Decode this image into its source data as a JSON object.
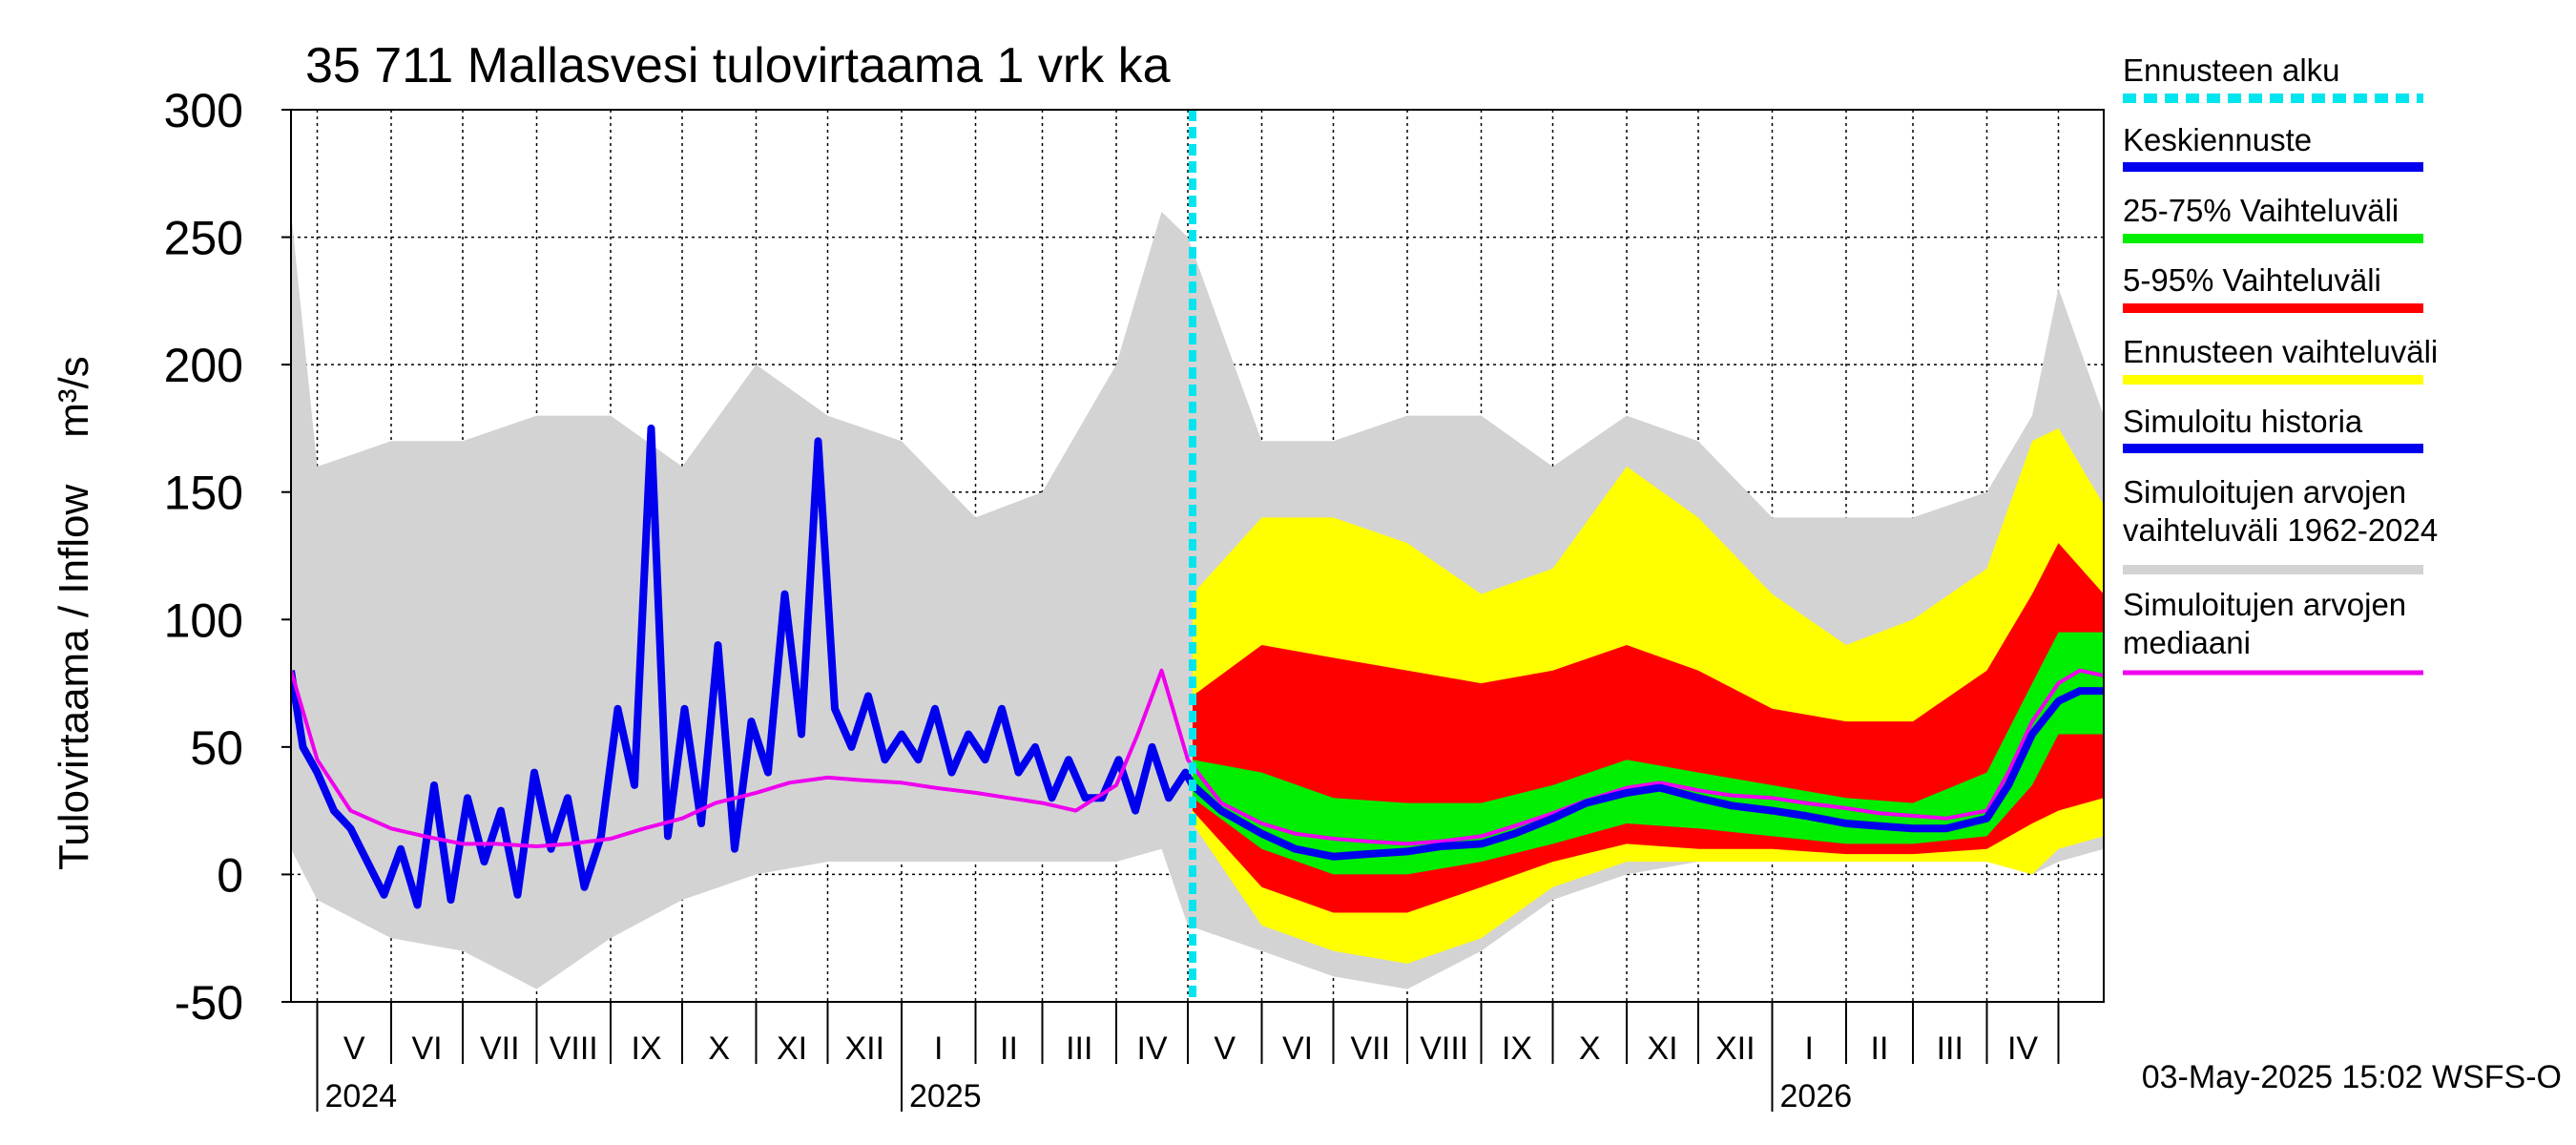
{
  "chart_data": {
    "type": "line",
    "title": "35 711 Mallasvesi tulovirtaama 1 vrk ka",
    "ylabel": "Tulovirtaama / Inflow    m³/s",
    "ylim": [
      -50,
      300
    ],
    "yticks": [
      -50,
      0,
      50,
      100,
      150,
      200,
      250,
      300
    ],
    "ytick_labels": [
      "-50",
      "0",
      "50",
      "100",
      "150",
      "200",
      "250",
      "300"
    ],
    "xlim": [
      "2024-04-20",
      "2026-05-20"
    ],
    "forecast_start": "2025-05-03",
    "months": [
      {
        "label": "V",
        "start": "2024-05-01"
      },
      {
        "label": "VI",
        "start": "2024-06-01"
      },
      {
        "label": "VII",
        "start": "2024-07-01"
      },
      {
        "label": "VIII",
        "start": "2024-08-01"
      },
      {
        "label": "IX",
        "start": "2024-09-01"
      },
      {
        "label": "X",
        "start": "2024-10-01"
      },
      {
        "label": "XI",
        "start": "2024-11-01"
      },
      {
        "label": "XII",
        "start": "2024-12-01"
      },
      {
        "label": "I",
        "start": "2025-01-01"
      },
      {
        "label": "II",
        "start": "2025-02-01"
      },
      {
        "label": "III",
        "start": "2025-03-01"
      },
      {
        "label": "IV",
        "start": "2025-04-01"
      },
      {
        "label": "V",
        "start": "2025-05-01"
      },
      {
        "label": "VI",
        "start": "2025-06-01"
      },
      {
        "label": "VII",
        "start": "2025-07-01"
      },
      {
        "label": "VIII",
        "start": "2025-08-01"
      },
      {
        "label": "IX",
        "start": "2025-09-01"
      },
      {
        "label": "X",
        "start": "2025-10-01"
      },
      {
        "label": "XI",
        "start": "2025-11-01"
      },
      {
        "label": "XII",
        "start": "2025-12-01"
      },
      {
        "label": "I",
        "start": "2026-01-01"
      },
      {
        "label": "II",
        "start": "2026-02-01"
      },
      {
        "label": "III",
        "start": "2026-03-01"
      },
      {
        "label": "IV",
        "start": "2026-04-01"
      },
      {
        "label": "",
        "start": "2026-05-01"
      }
    ],
    "years": [
      {
        "label": "2024",
        "date": "2024-05-01"
      },
      {
        "label": "2025",
        "date": "2025-01-01"
      },
      {
        "label": "2026",
        "date": "2026-01-01"
      }
    ],
    "legend": [
      {
        "label": "Ennusteen alku",
        "color": "#00e5ee",
        "style": "dashed"
      },
      {
        "label": "Keskiennuste",
        "color": "#0000ee",
        "style": "solid"
      },
      {
        "label": "25-75% Vaihteluväli",
        "color": "#00ee00",
        "style": "solid"
      },
      {
        "label": "5-95% Vaihteluväli",
        "color": "#ff0000",
        "style": "solid"
      },
      {
        "label": "Ennusteen vaihteluväli",
        "color": "#ffff00",
        "style": "solid"
      },
      {
        "label": "Simuloitu historia",
        "color": "#0000ee",
        "style": "solid"
      },
      {
        "label": "Simuloitujen arvojen\nvaihteluväli 1962-2024",
        "color": "#d3d3d3",
        "style": "solid"
      },
      {
        "label": "Simuloitujen arvojen\nmediaani",
        "color": "#ee00ee",
        "style": "solid"
      }
    ],
    "grid": true,
    "legend_position": "right",
    "footer": "03-May-2025 15:02 WSFS-O",
    "series": [
      {
        "name": "Simuloitu historia",
        "color": "#0000ee",
        "x": [
          "2024-04-20",
          "2024-04-25",
          "2024-05-01",
          "2024-05-08",
          "2024-05-15",
          "2024-05-22",
          "2024-05-29",
          "2024-06-05",
          "2024-06-12",
          "2024-06-19",
          "2024-06-26",
          "2024-07-03",
          "2024-07-10",
          "2024-07-17",
          "2024-07-24",
          "2024-07-31",
          "2024-08-07",
          "2024-08-14",
          "2024-08-21",
          "2024-08-28",
          "2024-09-04",
          "2024-09-11",
          "2024-09-18",
          "2024-09-25",
          "2024-10-02",
          "2024-10-09",
          "2024-10-16",
          "2024-10-23",
          "2024-10-30",
          "2024-11-06",
          "2024-11-13",
          "2024-11-20",
          "2024-11-27",
          "2024-12-04",
          "2024-12-11",
          "2024-12-18",
          "2024-12-25",
          "2025-01-01",
          "2025-01-08",
          "2025-01-15",
          "2025-01-22",
          "2025-01-29",
          "2025-02-05",
          "2025-02-12",
          "2025-02-19",
          "2025-02-26",
          "2025-03-05",
          "2025-03-12",
          "2025-03-19",
          "2025-03-26",
          "2025-04-02",
          "2025-04-09",
          "2025-04-16",
          "2025-04-23",
          "2025-04-30",
          "2025-05-03"
        ],
        "y": [
          80,
          50,
          40,
          25,
          18,
          5,
          -8,
          10,
          -12,
          35,
          -10,
          30,
          5,
          25,
          -8,
          40,
          10,
          30,
          -5,
          15,
          65,
          35,
          175,
          15,
          65,
          20,
          90,
          10,
          60,
          40,
          110,
          55,
          170,
          65,
          50,
          70,
          45,
          55,
          45,
          65,
          40,
          55,
          45,
          65,
          40,
          50,
          30,
          45,
          30,
          30,
          45,
          25,
          50,
          30,
          40,
          35
        ]
      },
      {
        "name": "Simuloitujen arvojen mediaani",
        "color": "#ee00ee",
        "x": [
          "2024-04-20",
          "2024-05-01",
          "2024-05-15",
          "2024-06-01",
          "2024-06-15",
          "2024-07-01",
          "2024-07-15",
          "2024-08-01",
          "2024-08-15",
          "2024-09-01",
          "2024-09-15",
          "2024-10-01",
          "2024-10-15",
          "2024-11-01",
          "2024-11-15",
          "2024-12-01",
          "2024-12-15",
          "2025-01-01",
          "2025-01-15",
          "2025-02-01",
          "2025-02-15",
          "2025-03-01",
          "2025-03-15",
          "2025-04-01",
          "2025-04-10",
          "2025-04-20",
          "2025-05-01",
          "2025-05-15",
          "2025-06-01",
          "2025-06-15",
          "2025-07-01",
          "2025-07-15",
          "2025-08-01",
          "2025-08-15",
          "2025-09-01",
          "2025-09-15",
          "2025-10-01",
          "2025-10-15",
          "2025-11-01",
          "2025-11-15",
          "2025-12-01",
          "2025-12-15",
          "2026-01-01",
          "2026-01-15",
          "2026-02-01",
          "2026-02-15",
          "2026-03-01",
          "2026-03-15",
          "2026-04-01",
          "2026-04-10",
          "2026-04-20",
          "2026-05-01",
          "2026-05-10",
          "2026-05-20"
        ],
        "y": [
          80,
          45,
          25,
          18,
          15,
          12,
          12,
          11,
          12,
          14,
          18,
          22,
          28,
          32,
          36,
          38,
          37,
          36,
          34,
          32,
          30,
          28,
          25,
          35,
          55,
          80,
          45,
          28,
          20,
          16,
          14,
          13,
          12,
          13,
          15,
          19,
          24,
          29,
          34,
          36,
          33,
          31,
          30,
          28,
          26,
          24,
          23,
          22,
          25,
          40,
          60,
          75,
          80,
          78
        ]
      },
      {
        "name": "Keskiennuste",
        "color": "#0000ee",
        "x": [
          "2025-05-03",
          "2025-05-15",
          "2025-06-01",
          "2025-06-15",
          "2025-07-01",
          "2025-07-15",
          "2025-08-01",
          "2025-08-15",
          "2025-09-01",
          "2025-09-15",
          "2025-10-01",
          "2025-10-15",
          "2025-11-01",
          "2025-11-15",
          "2025-12-01",
          "2025-12-15",
          "2026-01-01",
          "2026-01-15",
          "2026-02-01",
          "2026-02-15",
          "2026-03-01",
          "2026-03-15",
          "2026-04-01",
          "2026-04-10",
          "2026-04-20",
          "2026-05-01",
          "2026-05-10",
          "2026-05-20"
        ],
        "y": [
          35,
          25,
          16,
          10,
          7,
          8,
          9,
          11,
          12,
          16,
          22,
          28,
          32,
          34,
          30,
          27,
          25,
          23,
          20,
          19,
          18,
          18,
          22,
          35,
          55,
          68,
          72,
          72
        ]
      }
    ],
    "bands": [
      {
        "name": "Simuloitujen arvojen vaihteluväli 1962-2024",
        "color": "#d3d3d3",
        "x": [
          "2024-04-20",
          "2024-05-01",
          "2024-06-01",
          "2024-07-01",
          "2024-08-01",
          "2024-09-01",
          "2024-10-01",
          "2024-11-01",
          "2024-12-01",
          "2025-01-01",
          "2025-02-01",
          "2025-03-01",
          "2025-04-01",
          "2025-04-20",
          "2025-05-01",
          "2025-06-01",
          "2025-07-01",
          "2025-08-01",
          "2025-09-01",
          "2025-10-01",
          "2025-11-01",
          "2025-12-01",
          "2026-01-01",
          "2026-02-01",
          "2026-03-01",
          "2026-04-01",
          "2026-04-20",
          "2026-05-01",
          "2026-05-20"
        ],
        "low": [
          10,
          -10,
          -25,
          -30,
          -45,
          -25,
          -10,
          0,
          5,
          5,
          5,
          5,
          5,
          10,
          -20,
          -30,
          -40,
          -45,
          -30,
          -10,
          0,
          5,
          5,
          5,
          5,
          5,
          0,
          5,
          10
        ],
        "high": [
          260,
          160,
          170,
          170,
          180,
          180,
          160,
          200,
          180,
          170,
          140,
          150,
          200,
          260,
          250,
          170,
          170,
          180,
          180,
          160,
          180,
          170,
          140,
          140,
          140,
          150,
          180,
          230,
          180
        ]
      },
      {
        "name": "Ennusteen vaihteluväli",
        "color": "#ffff00",
        "x": [
          "2025-05-03",
          "2025-06-01",
          "2025-07-01",
          "2025-08-01",
          "2025-09-01",
          "2025-10-01",
          "2025-11-01",
          "2025-12-01",
          "2026-01-01",
          "2026-02-01",
          "2026-03-01",
          "2026-04-01",
          "2026-04-20",
          "2026-05-01",
          "2026-05-20"
        ],
        "low": [
          20,
          -20,
          -30,
          -35,
          -25,
          -5,
          5,
          5,
          5,
          5,
          5,
          5,
          0,
          10,
          15
        ],
        "high": [
          110,
          140,
          140,
          130,
          110,
          120,
          160,
          140,
          110,
          90,
          100,
          120,
          170,
          175,
          145
        ]
      },
      {
        "name": "5-95% Vaihteluväli",
        "color": "#ff0000",
        "x": [
          "2025-05-03",
          "2025-06-01",
          "2025-07-01",
          "2025-08-01",
          "2025-09-01",
          "2025-10-01",
          "2025-11-01",
          "2025-12-01",
          "2026-01-01",
          "2026-02-01",
          "2026-03-01",
          "2026-04-01",
          "2026-04-20",
          "2026-05-01",
          "2026-05-20"
        ],
        "low": [
          25,
          -5,
          -15,
          -15,
          -5,
          5,
          12,
          10,
          10,
          8,
          8,
          10,
          20,
          25,
          30
        ],
        "high": [
          70,
          90,
          85,
          80,
          75,
          80,
          90,
          80,
          65,
          60,
          60,
          80,
          110,
          130,
          110
        ]
      },
      {
        "name": "25-75% Vaihteluväli",
        "color": "#00ee00",
        "x": [
          "2025-05-03",
          "2025-06-01",
          "2025-07-01",
          "2025-08-01",
          "2025-09-01",
          "2025-10-01",
          "2025-11-01",
          "2025-12-01",
          "2026-01-01",
          "2026-02-01",
          "2026-03-01",
          "2026-04-01",
          "2026-04-20",
          "2026-05-01",
          "2026-05-20"
        ],
        "low": [
          30,
          10,
          0,
          0,
          5,
          12,
          20,
          18,
          15,
          12,
          12,
          15,
          35,
          55,
          55
        ],
        "high": [
          45,
          40,
          30,
          28,
          28,
          35,
          45,
          40,
          35,
          30,
          28,
          40,
          75,
          95,
          95
        ]
      }
    ]
  }
}
